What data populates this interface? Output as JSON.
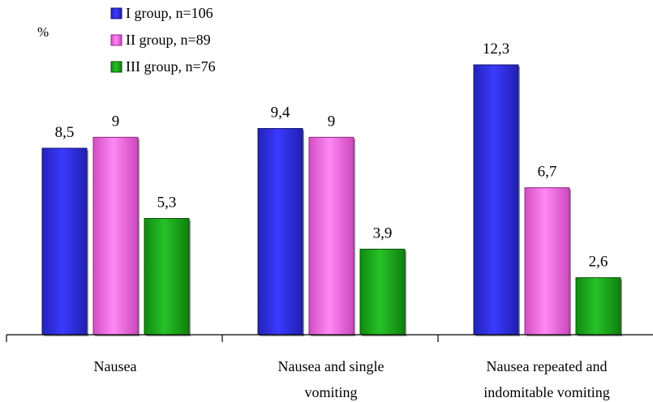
{
  "chart_data": {
    "type": "bar",
    "ylabel": "%",
    "categories": [
      [
        "Nausea"
      ],
      [
        "Nausea and single",
        "vomiting"
      ],
      [
        "Nausea repeated and",
        "indomitable vomiting"
      ]
    ],
    "series": [
      {
        "name": "I group, n=106",
        "values": [
          8.5,
          9.4,
          12.3
        ],
        "labels": [
          "8,5",
          "9,4",
          "12,3"
        ],
        "color": "#2a2ad8"
      },
      {
        "name": "II group, n=89",
        "values": [
          9,
          9,
          6.7
        ],
        "labels": [
          "9",
          "9",
          "6,7"
        ],
        "color": "#ee6ee0"
      },
      {
        "name": "III group, n=76",
        "values": [
          5.3,
          3.9,
          2.6
        ],
        "labels": [
          "5,3",
          "3,9",
          "2,6"
        ],
        "color": "#1fa51f"
      }
    ],
    "ylim": [
      0,
      14
    ],
    "legend": "top-left",
    "grid": false
  }
}
